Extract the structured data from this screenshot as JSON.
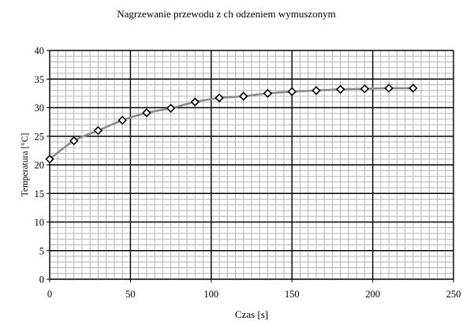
{
  "chart_data": {
    "type": "line",
    "title": "Nagrzewanie przewodu z ch odzeniem wymuszonym",
    "xlabel": "Czas [s]",
    "ylabel": "Temperatura [°C]",
    "xlim": [
      0,
      250
    ],
    "ylim": [
      0,
      40
    ],
    "x_ticks": [
      0,
      50,
      100,
      150,
      200,
      250
    ],
    "y_ticks": [
      0,
      5,
      10,
      15,
      20,
      25,
      30,
      35,
      40
    ],
    "x_tick_labels": [
      "0",
      "50",
      "100",
      "150",
      "200",
      "250"
    ],
    "y_tick_labels": [
      "0",
      "5",
      "10",
      "15",
      "20",
      "25",
      "30",
      "35",
      "40"
    ],
    "grid": true,
    "legend": "none",
    "series": [
      {
        "marker": "diamond",
        "line_color": "#8c8c8c",
        "marker_color": "#000000",
        "x": [
          0,
          15,
          30,
          45,
          60,
          75,
          90,
          105,
          120,
          135,
          150,
          165,
          180,
          195,
          210,
          225
        ],
        "y": [
          21.0,
          24.2,
          26.0,
          27.8,
          29.1,
          29.9,
          31.0,
          31.7,
          32.0,
          32.5,
          32.8,
          33.0,
          33.2,
          33.3,
          33.4,
          33.4
        ]
      }
    ]
  }
}
